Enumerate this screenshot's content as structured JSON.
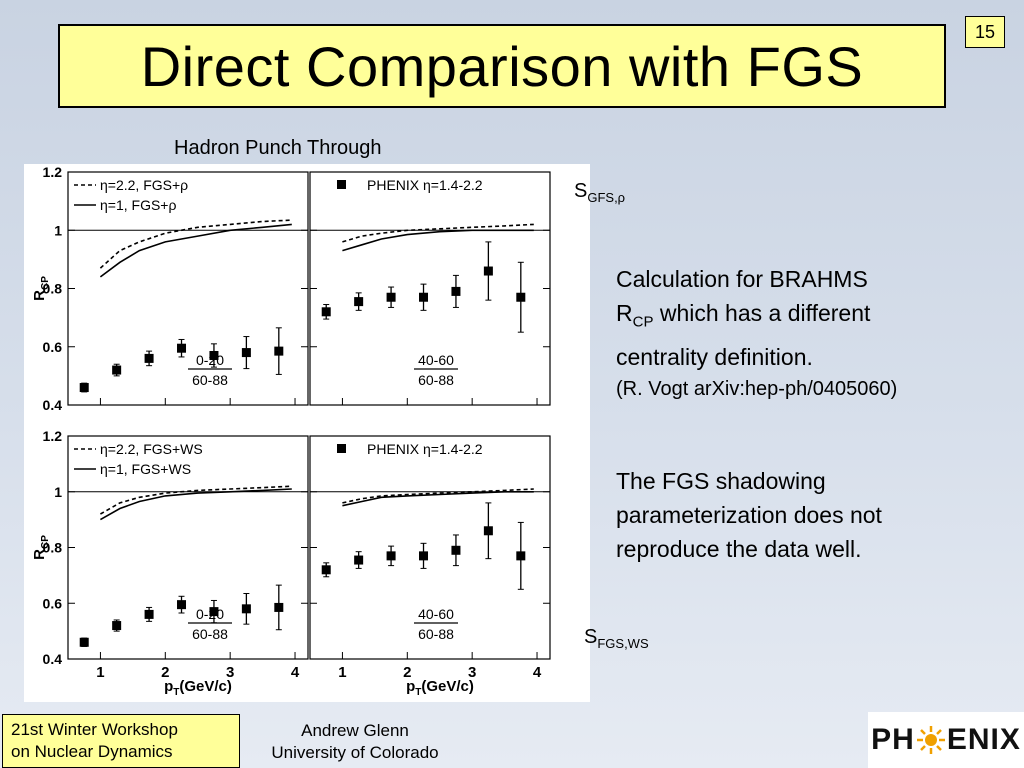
{
  "slide": {
    "title": "Direct Comparison with FGS",
    "page_number": "15",
    "caption": "Hadron Punch Through",
    "label_top": {
      "main": "S",
      "sub": "GFS,ρ"
    },
    "label_bottom": {
      "main": "S",
      "sub": "FGS,WS"
    },
    "note1": {
      "line1": "Calculation for BRAHMS",
      "line2_main": "R",
      "line2_sub": "CP",
      "line2_rest": " which has a different",
      "line3": "centrality definition.",
      "line4": "(R. Vogt arXiv:hep-ph/0405060)"
    },
    "note2": {
      "line1": "The FGS shadowing",
      "line2": "parameterization does not",
      "line3": "reproduce the data well."
    },
    "footer_left": {
      "line1": "21st Winter Workshop",
      "line2": "on Nuclear Dynamics"
    },
    "footer_center": {
      "line1": "Andrew Glenn",
      "line2": "University of Colorado"
    },
    "logo": {
      "left": "PH",
      "right": "ENIX",
      "center_icon": "sun-icon"
    }
  },
  "colors": {
    "title_bg": "#ffff99",
    "accent_logo": "#f0a000"
  },
  "chart_data": [
    {
      "type": "scatter",
      "ylabel": "R",
      "ylabel_sub": "CP",
      "ylim": [
        0.4,
        1.2
      ],
      "xlim": [
        0.5,
        4.2
      ],
      "yticks": [
        "0.4",
        "0.6",
        "0.8",
        "1",
        "1.2"
      ],
      "xticks": [],
      "panels": [
        {
          "legend": [
            "η=2.2, FGS+ρ",
            "η=1, FGS+ρ"
          ],
          "box_label": [
            "0-20",
            "60-88"
          ],
          "data": {
            "x": [
              0.75,
              1.25,
              1.75,
              2.25,
              2.75,
              3.25,
              3.75
            ],
            "y": [
              0.46,
              0.52,
              0.56,
              0.595,
              0.57,
              0.58,
              0.585
            ],
            "err": [
              0.015,
              0.02,
              0.025,
              0.03,
              0.04,
              0.055,
              0.08
            ]
          },
          "curves": [
            {
              "name": "η=2.2, FGS+ρ",
              "style": "dashed",
              "x": [
                1.0,
                1.3,
                1.6,
                2.0,
                2.5,
                3.0,
                3.5,
                3.95
              ],
              "y": [
                0.87,
                0.93,
                0.96,
                0.99,
                1.01,
                1.02,
                1.03,
                1.035
              ]
            },
            {
              "name": "η=1, FGS+ρ",
              "style": "solid",
              "x": [
                1.0,
                1.3,
                1.6,
                2.0,
                2.5,
                3.0,
                3.5,
                3.95
              ],
              "y": [
                0.84,
                0.89,
                0.93,
                0.96,
                0.98,
                1.0,
                1.01,
                1.02
              ]
            }
          ]
        },
        {
          "legend": [
            "PHENIX η=1.4-2.2"
          ],
          "box_label": [
            "40-60",
            "60-88"
          ],
          "data": {
            "x": [
              0.75,
              1.25,
              1.75,
              2.25,
              2.75,
              3.25,
              3.75
            ],
            "y": [
              0.72,
              0.755,
              0.77,
              0.77,
              0.79,
              0.86,
              0.77
            ],
            "err": [
              0.025,
              0.03,
              0.035,
              0.045,
              0.055,
              0.1,
              0.12
            ]
          },
          "curves": [
            {
              "name": "curve-1",
              "style": "dashed",
              "x": [
                1.0,
                1.3,
                1.6,
                2.0,
                2.5,
                3.0,
                3.5,
                3.95
              ],
              "y": [
                0.96,
                0.98,
                0.99,
                1.0,
                1.005,
                1.01,
                1.015,
                1.02
              ]
            },
            {
              "name": "curve-2",
              "style": "solid",
              "x": [
                1.0,
                1.3,
                1.6,
                2.0,
                2.5,
                3.0,
                3.5,
                3.95
              ],
              "y": [
                0.93,
                0.95,
                0.97,
                0.985,
                0.995,
                1.0,
                1.0,
                1.0
              ]
            }
          ]
        }
      ]
    },
    {
      "type": "scatter",
      "ylabel": "R",
      "ylabel_sub": "CP",
      "xlabel": "p",
      "xlabel_sub": "T",
      "xlabel_rest": "(GeV/c)",
      "ylim": [
        0.4,
        1.2
      ],
      "xlim": [
        0.5,
        4.2
      ],
      "yticks": [
        "0.4",
        "0.6",
        "0.8",
        "1",
        "1.2"
      ],
      "xticks": [
        "1",
        "2",
        "3",
        "4"
      ],
      "panels": [
        {
          "legend": [
            "η=2.2, FGS+WS",
            "η=1, FGS+WS"
          ],
          "box_label": [
            "0-20",
            "60-88"
          ],
          "data": {
            "x": [
              0.75,
              1.25,
              1.75,
              2.25,
              2.75,
              3.25,
              3.75
            ],
            "y": [
              0.46,
              0.52,
              0.56,
              0.595,
              0.57,
              0.58,
              0.585
            ],
            "err": [
              0.015,
              0.02,
              0.025,
              0.03,
              0.04,
              0.055,
              0.08
            ]
          },
          "curves": [
            {
              "name": "η=2.2, FGS+WS",
              "style": "dashed",
              "x": [
                1.0,
                1.3,
                1.6,
                2.0,
                2.5,
                3.0,
                3.5,
                3.95
              ],
              "y": [
                0.92,
                0.96,
                0.98,
                0.995,
                1.005,
                1.01,
                1.015,
                1.02
              ]
            },
            {
              "name": "η=1, FGS+WS",
              "style": "solid",
              "x": [
                1.0,
                1.3,
                1.6,
                2.0,
                2.5,
                3.0,
                3.5,
                3.95
              ],
              "y": [
                0.9,
                0.94,
                0.965,
                0.985,
                0.995,
                1.0,
                1.005,
                1.01
              ]
            }
          ]
        },
        {
          "legend": [
            "PHENIX η=1.4-2.2"
          ],
          "box_label": [
            "40-60",
            "60-88"
          ],
          "data": {
            "x": [
              0.75,
              1.25,
              1.75,
              2.25,
              2.75,
              3.25,
              3.75
            ],
            "y": [
              0.72,
              0.755,
              0.77,
              0.77,
              0.79,
              0.86,
              0.77
            ],
            "err": [
              0.025,
              0.03,
              0.035,
              0.045,
              0.055,
              0.1,
              0.12
            ]
          },
          "curves": [
            {
              "name": "curve-1",
              "style": "dashed",
              "x": [
                1.0,
                1.3,
                1.6,
                2.0,
                2.5,
                3.0,
                3.5,
                3.95
              ],
              "y": [
                0.96,
                0.975,
                0.985,
                0.99,
                0.995,
                1.0,
                1.005,
                1.01
              ]
            },
            {
              "name": "curve-2",
              "style": "solid",
              "x": [
                1.0,
                1.3,
                1.6,
                2.0,
                2.5,
                3.0,
                3.5,
                3.95
              ],
              "y": [
                0.95,
                0.965,
                0.98,
                0.985,
                0.99,
                0.995,
                1.0,
                1.0
              ]
            }
          ]
        }
      ]
    }
  ]
}
